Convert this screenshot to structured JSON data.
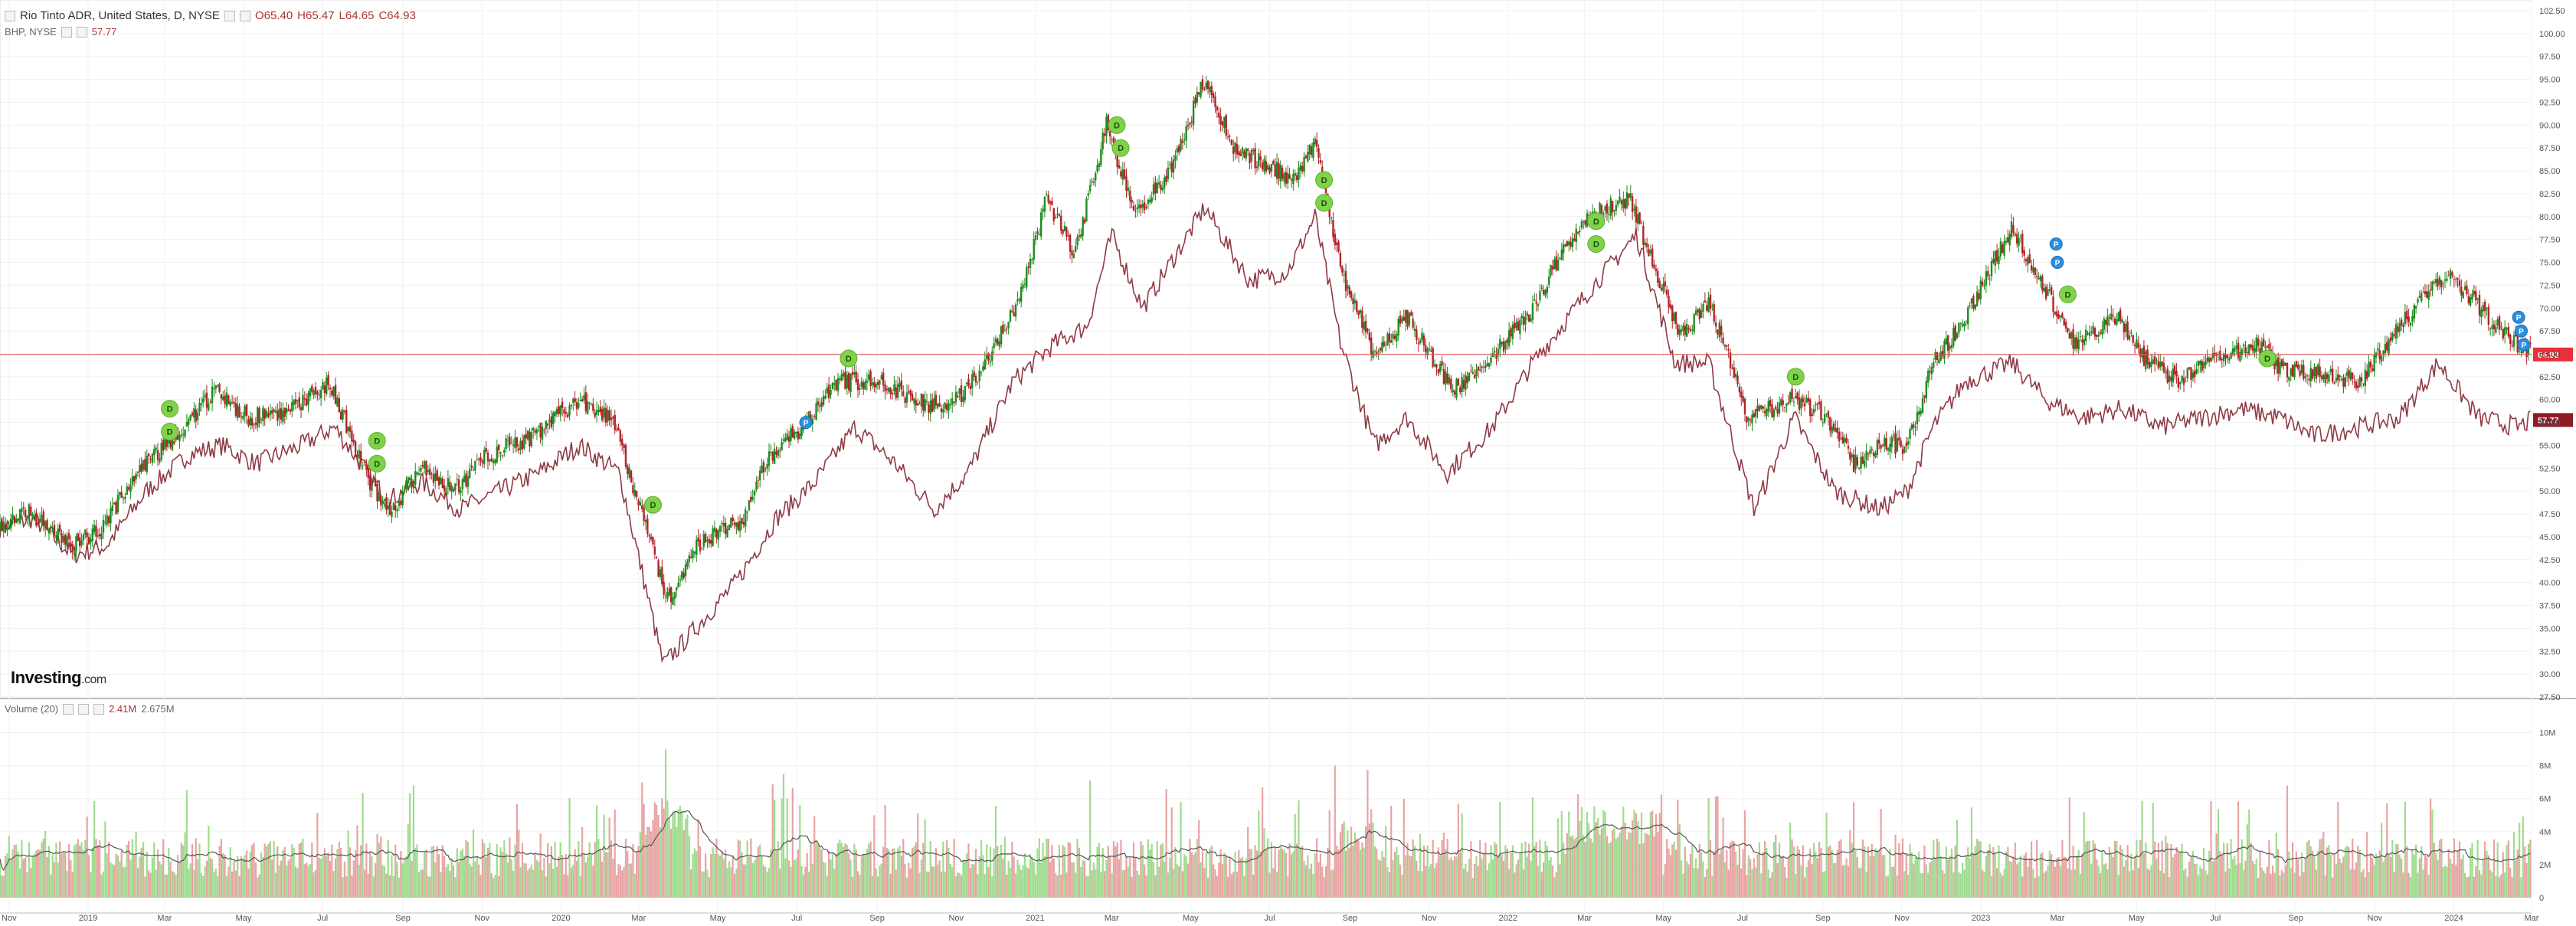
{
  "legend": {
    "symbol_title": "Rio Tinto ADR, United States, D, NYSE",
    "open": "O65.40",
    "high": "H65.47",
    "low": "L64.65",
    "close": "C64.93",
    "compare_label": "BHP, NYSE",
    "compare_value": "57.77",
    "volume_label": "Volume (20)",
    "volume_value": "2.41M",
    "volume_ma_value": "2.675M"
  },
  "logo": {
    "brand": "Investing",
    "suffix": ".com"
  },
  "chart_data": [
    {
      "type": "candlestick",
      "title": "Rio Tinto ADR, United States, D, NYSE",
      "ylim": [
        27.5,
        102.5
      ],
      "y_ticks": [
        "27.50",
        "30.00",
        "32.50",
        "35.00",
        "37.50",
        "40.00",
        "42.50",
        "45.00",
        "47.50",
        "50.00",
        "52.50",
        "55.00",
        "57.50",
        "60.00",
        "62.50",
        "65.00",
        "67.50",
        "70.00",
        "72.50",
        "75.00",
        "77.50",
        "80.00",
        "82.50",
        "85.00",
        "87.50",
        "90.00",
        "92.50",
        "95.00",
        "97.50",
        "100.00",
        "102.50"
      ],
      "x_ticks": [
        "Nov",
        "2019",
        "Mar",
        "May",
        "Jul",
        "Sep",
        "Nov",
        "2020",
        "Mar",
        "May",
        "Jul",
        "Sep",
        "Nov",
        "2021",
        "Mar",
        "May",
        "Jul",
        "Sep",
        "Nov",
        "2022",
        "Mar",
        "May",
        "Jul",
        "Sep",
        "Nov",
        "2023",
        "Mar",
        "May",
        "Jul",
        "Sep",
        "Nov",
        "2024",
        "Mar"
      ],
      "x_range": [
        "2018-10-25",
        "2024-03-01"
      ],
      "last_price_label": "64.93",
      "compare_last_label": "57.77",
      "series": [
        {
          "name": "Rio Tinto ADR",
          "color_up": "#1e8c1e",
          "color_down": "#b0242b",
          "approx_path": [
            [
              "2018-10-25",
              46
            ],
            [
              "2018-11-15",
              48
            ],
            [
              "2018-12-20",
              44
            ],
            [
              "2019-01-10",
              46
            ],
            [
              "2019-02-15",
              53
            ],
            [
              "2019-03-15",
              57
            ],
            [
              "2019-04-10",
              61
            ],
            [
              "2019-05-05",
              58
            ],
            [
              "2019-06-10",
              59
            ],
            [
              "2019-07-05",
              62
            ],
            [
              "2019-08-10",
              50
            ],
            [
              "2019-08-25",
              48
            ],
            [
              "2019-09-15",
              53
            ],
            [
              "2019-10-10",
              50
            ],
            [
              "2019-11-05",
              54
            ],
            [
              "2019-12-10",
              56
            ],
            [
              "2020-01-15",
              60
            ],
            [
              "2020-02-10",
              58
            ],
            [
              "2020-03-23",
              38
            ],
            [
              "2020-04-15",
              44
            ],
            [
              "2020-05-20",
              47
            ],
            [
              "2020-06-10",
              54
            ],
            [
              "2020-07-05",
              57
            ],
            [
              "2020-08-01",
              62
            ],
            [
              "2020-09-01",
              62
            ],
            [
              "2020-10-01",
              60
            ],
            [
              "2020-10-25",
              59
            ],
            [
              "2020-11-20",
              63
            ],
            [
              "2020-12-20",
              71
            ],
            [
              "2021-01-10",
              82
            ],
            [
              "2021-02-01",
              76
            ],
            [
              "2021-02-25",
              90
            ],
            [
              "2021-03-20",
              80
            ],
            [
              "2021-04-15",
              85
            ],
            [
              "2021-05-12",
              95
            ],
            [
              "2021-06-05",
              87
            ],
            [
              "2021-06-25",
              86
            ],
            [
              "2021-07-20",
              84
            ],
            [
              "2021-08-05",
              88
            ],
            [
              "2021-08-25",
              74
            ],
            [
              "2021-09-20",
              65
            ],
            [
              "2021-10-15",
              69
            ],
            [
              "2021-11-20",
              61
            ],
            [
              "2021-12-15",
              64
            ],
            [
              "2022-01-20",
              70
            ],
            [
              "2022-02-15",
              77
            ],
            [
              "2022-03-05",
              80
            ],
            [
              "2022-04-05",
              82
            ],
            [
              "2022-04-20",
              76
            ],
            [
              "2022-05-15",
              67
            ],
            [
              "2022-06-05",
              71
            ],
            [
              "2022-07-05",
              58
            ],
            [
              "2022-08-10",
              60
            ],
            [
              "2022-09-05",
              58
            ],
            [
              "2022-09-25",
              53
            ],
            [
              "2022-10-15",
              55
            ],
            [
              "2022-11-05",
              55
            ],
            [
              "2022-11-25",
              64
            ],
            [
              "2022-12-20",
              69
            ],
            [
              "2023-01-25",
              79
            ],
            [
              "2023-02-20",
              72
            ],
            [
              "2023-03-15",
              66
            ],
            [
              "2023-04-15",
              69
            ],
            [
              "2023-05-10",
              64
            ],
            [
              "2023-06-05",
              62
            ],
            [
              "2023-07-05",
              65
            ],
            [
              "2023-08-01",
              66
            ],
            [
              "2023-08-25",
              63
            ],
            [
              "2023-09-20",
              63
            ],
            [
              "2023-10-20",
              62
            ],
            [
              "2023-11-20",
              68
            ],
            [
              "2023-12-27",
              74
            ],
            [
              "2024-01-20",
              70
            ],
            [
              "2024-02-10",
              67
            ],
            [
              "2024-03-01",
              65
            ]
          ]
        },
        {
          "name": "BHP, NYSE",
          "color": "#8e3a44",
          "approx_path": [
            [
              "2018-10-25",
              46
            ],
            [
              "2018-11-20",
              47
            ],
            [
              "2018-12-20",
              43
            ],
            [
              "2019-01-15",
              44
            ],
            [
              "2019-02-15",
              50
            ],
            [
              "2019-03-20",
              54
            ],
            [
              "2019-04-15",
              55
            ],
            [
              "2019-05-10",
              53
            ],
            [
              "2019-06-15",
              55
            ],
            [
              "2019-07-10",
              57
            ],
            [
              "2019-08-20",
              49
            ],
            [
              "2019-09-15",
              51
            ],
            [
              "2019-10-15",
              48
            ],
            [
              "2019-11-15",
              50
            ],
            [
              "2019-12-15",
              52
            ],
            [
              "2020-01-15",
              55
            ],
            [
              "2020-02-15",
              52
            ],
            [
              "2020-03-20",
              31
            ],
            [
              "2020-04-20",
              36
            ],
            [
              "2020-05-15",
              40
            ],
            [
              "2020-06-15",
              47
            ],
            [
              "2020-07-15",
              51
            ],
            [
              "2020-08-15",
              57
            ],
            [
              "2020-09-15",
              53
            ],
            [
              "2020-10-15",
              48
            ],
            [
              "2020-11-10",
              52
            ],
            [
              "2020-12-15",
              62
            ],
            [
              "2021-01-15",
              66
            ],
            [
              "2021-02-10",
              68
            ],
            [
              "2021-03-01",
              78
            ],
            [
              "2021-03-25",
              70
            ],
            [
              "2021-05-12",
              81
            ],
            [
              "2021-06-15",
              73
            ],
            [
              "2021-07-15",
              74
            ],
            [
              "2021-08-05",
              80
            ],
            [
              "2021-08-25",
              66
            ],
            [
              "2021-09-20",
              55
            ],
            [
              "2021-10-15",
              58
            ],
            [
              "2021-11-15",
              52
            ],
            [
              "2021-12-20",
              57
            ],
            [
              "2022-01-20",
              64
            ],
            [
              "2022-03-05",
              72
            ],
            [
              "2022-04-10",
              78
            ],
            [
              "2022-05-10",
              64
            ],
            [
              "2022-06-05",
              64
            ],
            [
              "2022-07-10",
              48
            ],
            [
              "2022-08-10",
              58
            ],
            [
              "2022-09-10",
              50
            ],
            [
              "2022-10-15",
              48
            ],
            [
              "2022-11-05",
              50
            ],
            [
              "2022-11-25",
              57
            ],
            [
              "2022-12-20",
              62
            ],
            [
              "2023-01-25",
              64
            ],
            [
              "2023-02-20",
              60
            ],
            [
              "2023-03-20",
              58
            ],
            [
              "2023-04-20",
              59
            ],
            [
              "2023-05-20",
              57
            ],
            [
              "2023-06-20",
              58
            ],
            [
              "2023-07-20",
              59
            ],
            [
              "2023-08-20",
              58
            ],
            [
              "2023-09-15",
              56
            ],
            [
              "2023-10-20",
              57
            ],
            [
              "2023-11-20",
              58
            ],
            [
              "2023-12-20",
              64
            ],
            [
              "2024-01-20",
              58
            ],
            [
              "2024-02-20",
              57
            ],
            [
              "2024-03-01",
              57.77
            ]
          ]
        }
      ],
      "dividend_markers": [
        {
          "label": "D",
          "date": "2019-03-05",
          "value": 59
        },
        {
          "label": "D",
          "date": "2019-03-05",
          "value": 56.5
        },
        {
          "label": "D",
          "date": "2019-08-12",
          "value": 55.5
        },
        {
          "label": "D",
          "date": "2019-08-12",
          "value": 53
        },
        {
          "label": "D",
          "date": "2020-03-12",
          "value": 48.5
        },
        {
          "label": "D",
          "date": "2020-08-10",
          "value": 64.5
        },
        {
          "label": "D",
          "date": "2021-03-05",
          "value": 90
        },
        {
          "label": "D",
          "date": "2021-03-08",
          "value": 87.5
        },
        {
          "label": "D",
          "date": "2021-08-12",
          "value": 84
        },
        {
          "label": "D",
          "date": "2021-08-12",
          "value": 81.5
        },
        {
          "label": "D",
          "date": "2022-03-10",
          "value": 79.5
        },
        {
          "label": "D",
          "date": "2022-03-10",
          "value": 77
        },
        {
          "label": "D",
          "date": "2022-08-11",
          "value": 62.5
        },
        {
          "label": "D",
          "date": "2023-03-09",
          "value": 71.5
        },
        {
          "label": "D",
          "date": "2023-08-10",
          "value": 64.5
        }
      ],
      "event_markers": [
        {
          "label": "P",
          "date": "2020-07-08",
          "value": 57.5
        },
        {
          "label": "P",
          "date": "2023-02-28",
          "value": 77
        },
        {
          "label": "P",
          "date": "2023-03-01",
          "value": 75
        },
        {
          "label": "P",
          "date": "2024-02-20",
          "value": 69
        },
        {
          "label": "P",
          "date": "2024-02-22",
          "value": 67.5
        },
        {
          "label": "P",
          "date": "2024-02-24",
          "value": 66
        }
      ]
    },
    {
      "type": "bar",
      "title": "Volume (20)",
      "ylim": [
        0,
        11
      ],
      "y_ticks": [
        "0",
        "2M",
        "4M",
        "6M",
        "8M",
        "10M"
      ],
      "last_value": "2.41M",
      "ma_value": "2.675M",
      "colors": {
        "up": "#9fdc8f",
        "down": "#e8a4a4",
        "ma": "#555555"
      }
    }
  ]
}
